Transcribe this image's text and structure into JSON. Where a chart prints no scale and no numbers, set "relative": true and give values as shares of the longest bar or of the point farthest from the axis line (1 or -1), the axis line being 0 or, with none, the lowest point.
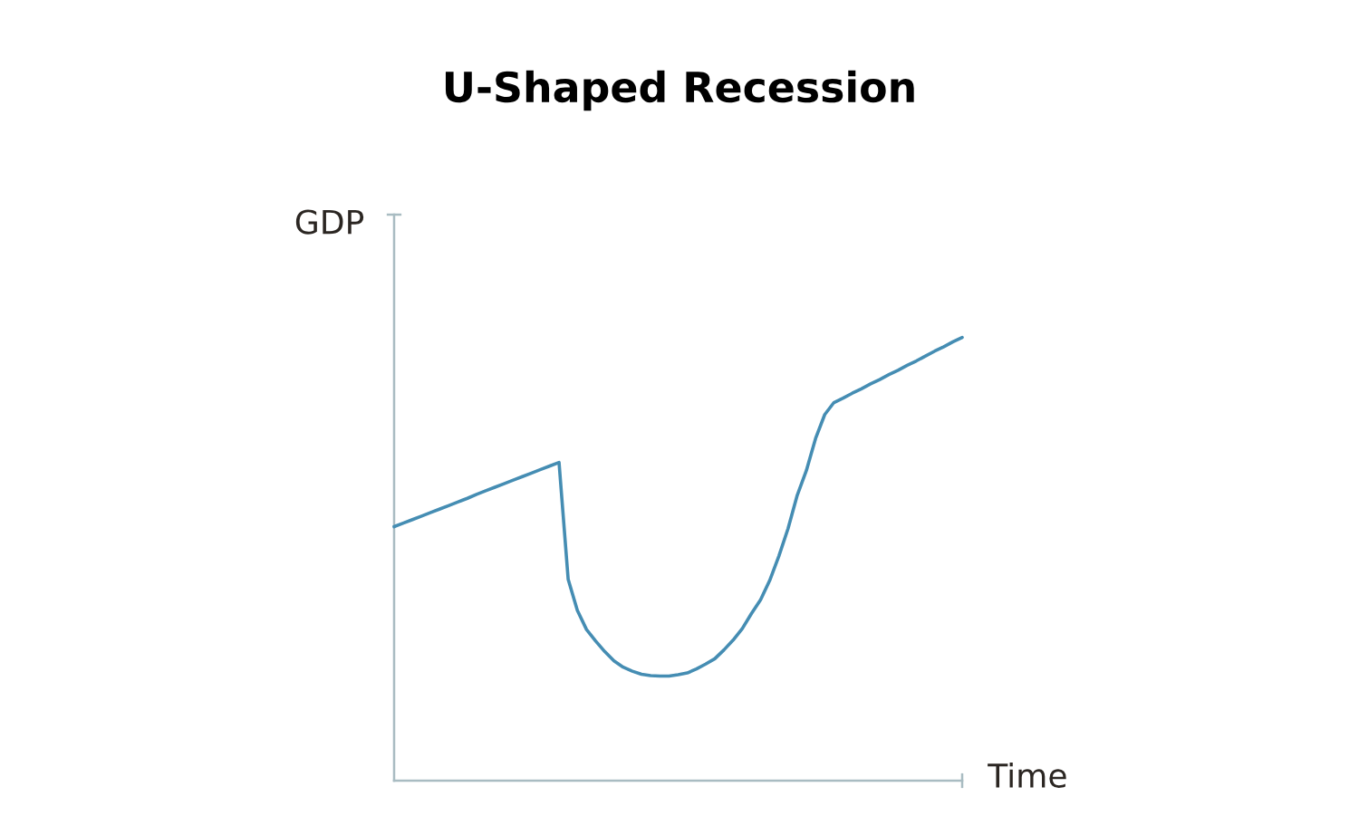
{
  "chart_data": {
    "type": "line",
    "title": "U-Shaped Recession",
    "xlabel": "Time",
    "ylabel": "GDP",
    "relative": true,
    "tick_labels": false,
    "marker": "none",
    "line_style": "solid",
    "categories": [
      null,
      null,
      null,
      null,
      null,
      null,
      null,
      null,
      null,
      null,
      null,
      null,
      null,
      null,
      null,
      null,
      null,
      null,
      null,
      null,
      null,
      null,
      null,
      null,
      null,
      null,
      null,
      null,
      null,
      null,
      null,
      null,
      null,
      null,
      null,
      null,
      null,
      null,
      null,
      null,
      null,
      null,
      null,
      null,
      null,
      null,
      null,
      null,
      null,
      null,
      null,
      null,
      null,
      null,
      null,
      null,
      null,
      null,
      null,
      null,
      null,
      null,
      null
    ],
    "series": [
      {
        "color": "#458db3",
        "values": [
          0.573,
          0.581,
          0.589,
          0.597,
          0.605,
          0.613,
          0.621,
          0.629,
          0.637,
          0.646,
          0.654,
          0.662,
          0.67,
          0.678,
          0.686,
          0.694,
          0.702,
          0.71,
          0.718,
          0.454,
          0.384,
          0.341,
          0.315,
          0.291,
          0.27,
          0.256,
          0.247,
          0.24,
          0.237,
          0.236,
          0.236,
          0.239,
          0.243,
          0.252,
          0.263,
          0.275,
          0.295,
          0.317,
          0.343,
          0.377,
          0.408,
          0.452,
          0.507,
          0.569,
          0.644,
          0.7,
          0.772,
          0.826,
          0.853,
          0.863,
          0.874,
          0.884,
          0.895,
          0.905,
          0.916,
          0.926,
          0.937,
          0.947,
          0.958,
          0.969,
          0.979,
          0.99,
          1
        ]
      }
    ]
  }
}
